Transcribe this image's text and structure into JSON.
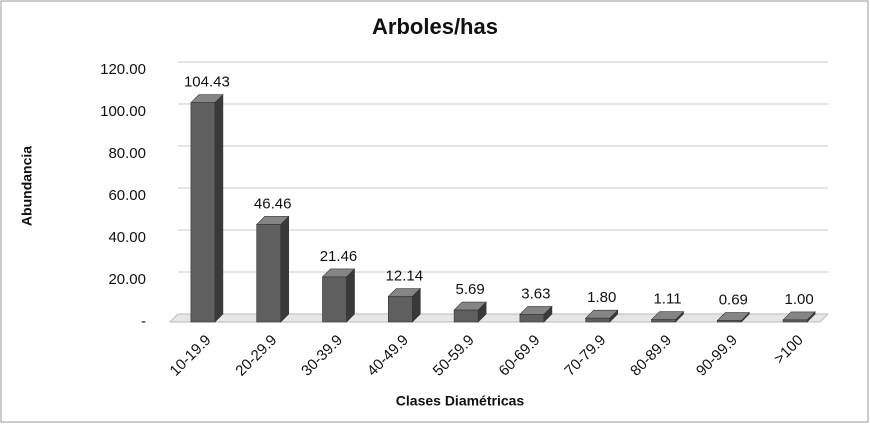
{
  "chart_data": {
    "type": "bar3d",
    "title": "Arboles/has",
    "x_label": "Clases Diamétricas",
    "y_label": "Abundancia",
    "categories": [
      "10-19.9",
      "20-29.9",
      "30-39.9",
      "40-49.9",
      "50-59.9",
      "60-69.9",
      "70-79.9",
      "80-89.9",
      "90-99.9",
      ">100"
    ],
    "values": [
      104.43,
      46.46,
      21.46,
      12.14,
      5.69,
      3.63,
      1.8,
      1.11,
      0.69,
      1.0
    ],
    "value_labels": [
      "104.43",
      "46.46",
      "21.46",
      "12.14",
      "5.69",
      "3.63",
      "1.80",
      "1.11",
      "0.69",
      "1.00"
    ],
    "color": "#5f5f5f",
    "ylim": [
      0,
      120
    ],
    "yticks": [
      {
        "value": 0,
        "label": "-"
      },
      {
        "value": 20,
        "label": "20.00"
      },
      {
        "value": 40,
        "label": "40.00"
      },
      {
        "value": 60,
        "label": "60.00"
      },
      {
        "value": 80,
        "label": "80.00"
      },
      {
        "value": 100,
        "label": "100.00"
      },
      {
        "value": 120,
        "label": "120.00"
      }
    ],
    "grid": true
  }
}
